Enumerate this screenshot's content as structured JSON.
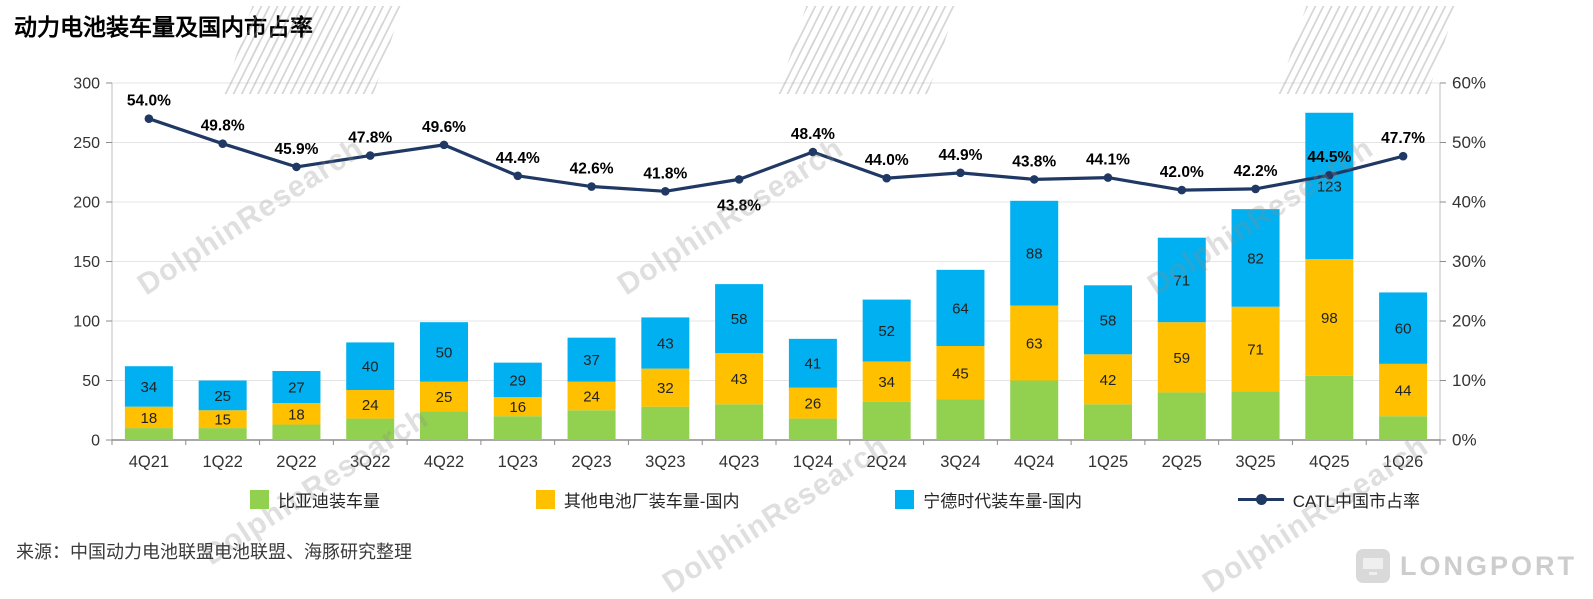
{
  "page": {
    "title": "动力电池装车量及国内市占率",
    "source": "来源：中国动力电池联盟电池联盟、海豚研究整理",
    "watermark_text": "DolphinResearch",
    "brand_text": "LONGPORT"
  },
  "chart_data": {
    "type": "bar",
    "subtype": "stacked-bar-with-line",
    "title": "动力电池装车量及国内市占率",
    "categories": [
      "4Q21",
      "1Q22",
      "2Q22",
      "3Q22",
      "4Q22",
      "1Q23",
      "2Q23",
      "3Q23",
      "4Q23",
      "1Q24",
      "2Q24",
      "3Q24",
      "4Q24",
      "1Q25",
      "2Q25",
      "3Q25",
      "4Q25",
      "1Q26"
    ],
    "bar_series": [
      {
        "name": "比亚迪装车量",
        "color": "#92D050",
        "show_labels": false,
        "values": [
          10,
          10,
          13,
          18,
          24,
          20,
          25,
          28,
          30,
          18,
          32,
          34,
          50,
          30,
          40,
          41,
          54,
          20
        ]
      },
      {
        "name": "其他电池厂装车量-国内",
        "color": "#FFC000",
        "show_labels": true,
        "values": [
          18,
          15,
          18,
          24,
          25,
          16,
          24,
          32,
          43,
          26,
          34,
          45,
          63,
          42,
          59,
          71,
          98,
          44
        ]
      },
      {
        "name": "宁德时代装车量-国内",
        "color": "#00B0F0",
        "show_labels": true,
        "values": [
          34,
          25,
          27,
          40,
          50,
          29,
          37,
          43,
          58,
          41,
          52,
          64,
          88,
          58,
          71,
          82,
          123,
          60
        ]
      }
    ],
    "line_series": {
      "name": "CATL中国市占率",
      "color": "#1F3864",
      "values": [
        54.0,
        49.8,
        45.9,
        47.8,
        49.6,
        44.4,
        42.6,
        41.8,
        43.8,
        48.4,
        44.0,
        44.9,
        43.8,
        44.1,
        42.0,
        42.2,
        44.5,
        47.7
      ],
      "label_below_indices": [
        8
      ]
    },
    "left_axis": {
      "min": 0,
      "max": 300,
      "step": 50
    },
    "right_axis": {
      "min": 0,
      "max": 60,
      "step": 10,
      "suffix": "%"
    },
    "grid": true,
    "legend_position": "bottom"
  }
}
